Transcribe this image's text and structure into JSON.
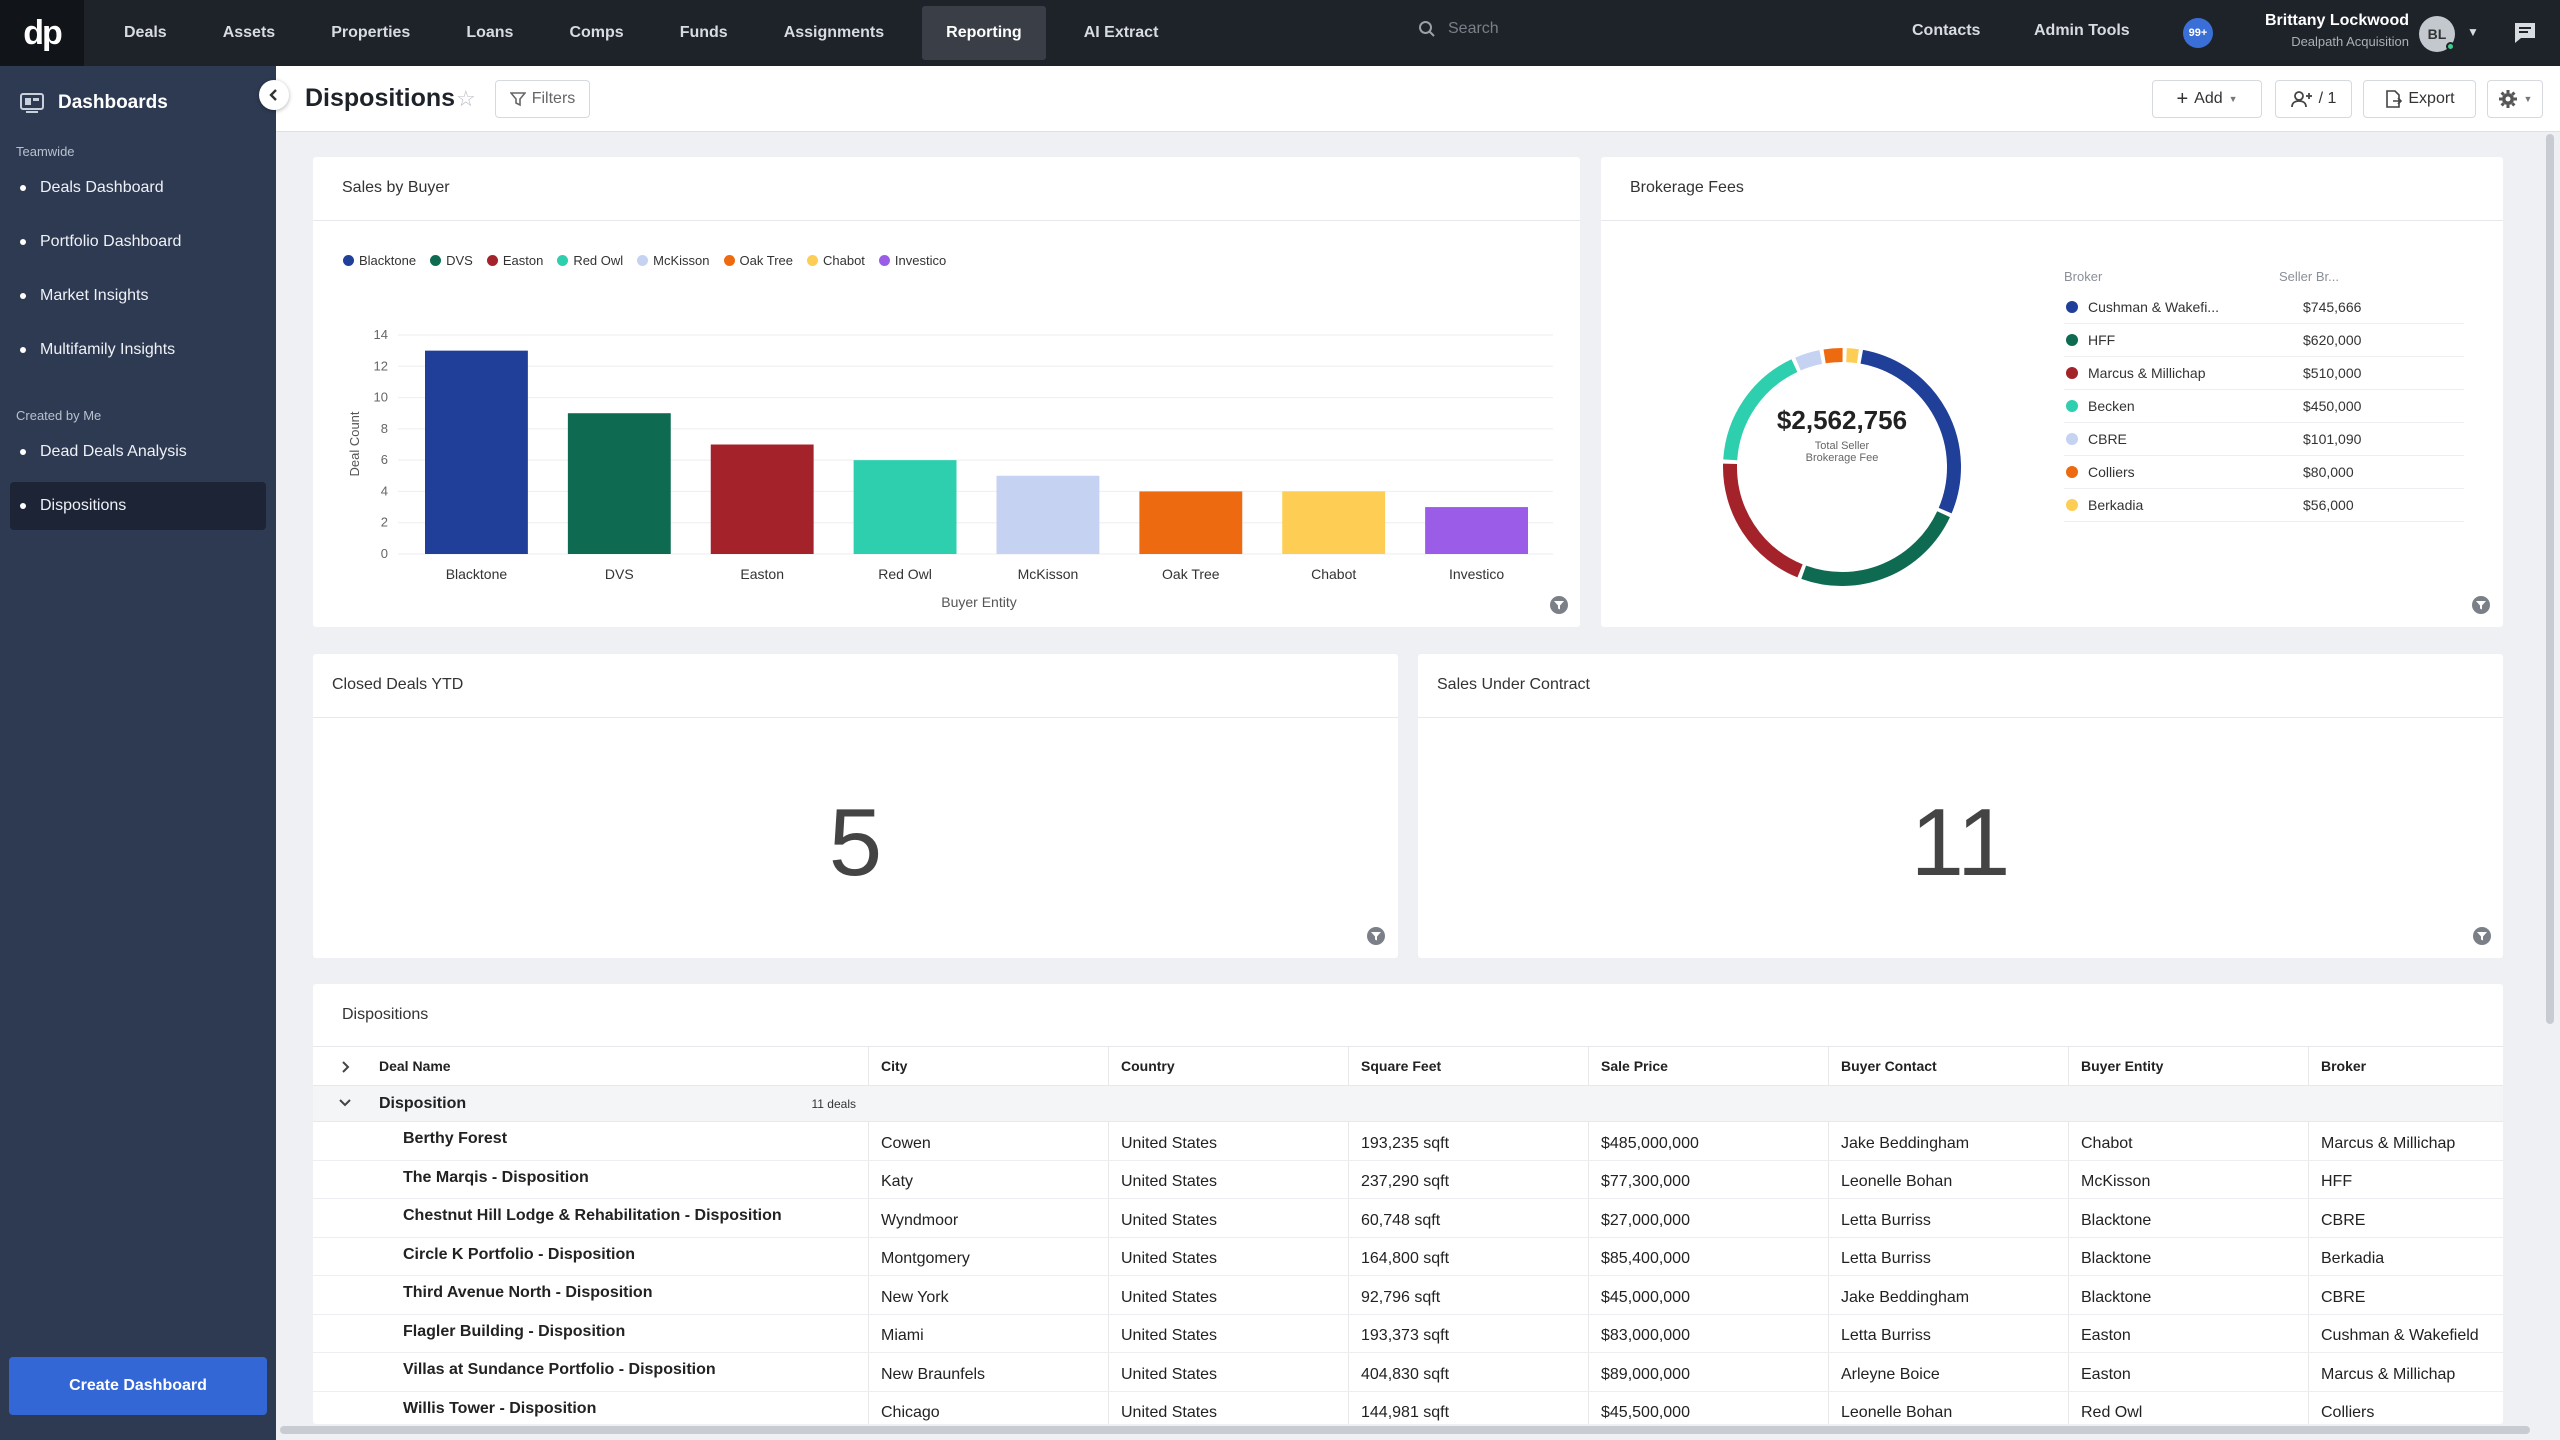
{
  "nav": {
    "logo": "dp",
    "items": [
      "Deals",
      "Assets",
      "Properties",
      "Loans",
      "Comps",
      "Funds",
      "Assignments",
      "Reporting",
      "AI Extract"
    ],
    "active": "Reporting",
    "search_placeholder": "Search",
    "contacts": "Contacts",
    "admin_tools": "Admin Tools",
    "notifications": "99+",
    "user_name": "Brittany Lockwood",
    "user_company": "Dealpath Acquisition",
    "user_initials": "BL"
  },
  "sidebar": {
    "title": "Dashboards",
    "section_teamwide": "Teamwide",
    "teamwide": [
      "Deals Dashboard",
      "Portfolio Dashboard",
      "Market Insights",
      "Multifamily Insights"
    ],
    "section_created": "Created by Me",
    "created": [
      "Dead Deals Analysis",
      "Dispositions"
    ],
    "active": "Dispositions",
    "create_button": "Create Dashboard"
  },
  "header": {
    "title": "Dispositions",
    "filters": "Filters",
    "add": "Add",
    "share_count": "/ 1",
    "export": "Export"
  },
  "sales_by_buyer": {
    "title": "Sales by Buyer",
    "chart_data": {
      "type": "bar",
      "categories": [
        "Blacktone",
        "DVS",
        "Easton",
        "Red Owl",
        "McKisson",
        "Oak Tree",
        "Chabot",
        "Investico"
      ],
      "values": [
        13,
        9,
        7,
        6,
        5,
        4,
        4,
        3
      ],
      "colors": [
        "#1f3f99",
        "#0e6b52",
        "#a4232a",
        "#2ecfae",
        "#c5d2f2",
        "#ee6a10",
        "#fdcd54",
        "#9b5ce8"
      ],
      "xlabel": "Buyer Entity",
      "ylabel": "Deal Count",
      "ylim": [
        0,
        14
      ],
      "yticks": [
        0,
        2,
        4,
        6,
        8,
        10,
        12,
        14
      ],
      "legend": "top-left",
      "grid": true
    }
  },
  "brokerage_fees": {
    "title": "Brokerage Fees",
    "total": "$2,562,756",
    "total_label_1": "Total Seller",
    "total_label_2": "Brokerage Fee",
    "col_broker": "Broker",
    "col_seller": "Seller Br...",
    "chart_data": {
      "type": "pie",
      "categories": [
        "Cushman & Wakefi...",
        "HFF",
        "Marcus & Millichap",
        "Becken",
        "CBRE",
        "Colliers",
        "Berkadia"
      ],
      "display_values": [
        "$745,666",
        "$620,000",
        "$510,000",
        "$450,000",
        "$101,090",
        "$80,000",
        "$56,000"
      ],
      "values": [
        745666,
        620000,
        510000,
        450000,
        101090,
        80000,
        56000
      ],
      "colors": [
        "#1f3f99",
        "#0e6b52",
        "#a4232a",
        "#2ecfae",
        "#c5d2f2",
        "#ee6a10",
        "#fdcd54"
      ]
    }
  },
  "closed_deals": {
    "title": "Closed Deals YTD",
    "value": "5"
  },
  "under_contract": {
    "title": "Sales Under Contract",
    "value": "11"
  },
  "dispositions_table": {
    "title": "Dispositions",
    "columns": [
      "Deal Name",
      "City",
      "Country",
      "Square Feet",
      "Sale Price",
      "Buyer Contact",
      "Buyer Entity",
      "Broker"
    ],
    "group_label": "Disposition",
    "group_count": "11 deals",
    "rows": [
      [
        "Berthy Forest",
        "Cowen",
        "United States",
        "193,235 sqft",
        "$485,000,000",
        "Jake Beddingham",
        "Chabot",
        "Marcus & Millichap"
      ],
      [
        "The Marqis - Disposition",
        "Katy",
        "United States",
        "237,290 sqft",
        "$77,300,000",
        "Leonelle Bohan",
        "McKisson",
        "HFF"
      ],
      [
        "Chestnut Hill Lodge & Rehabilitation - Disposition",
        "Wyndmoor",
        "United States",
        "60,748 sqft",
        "$27,000,000",
        "Letta Burriss",
        "Blacktone",
        "CBRE"
      ],
      [
        "Circle K Portfolio - Disposition",
        "Montgomery",
        "United States",
        "164,800 sqft",
        "$85,400,000",
        "Letta Burriss",
        "Blacktone",
        "Berkadia"
      ],
      [
        "Third Avenue North - Disposition",
        "New York",
        "United States",
        "92,796 sqft",
        "$45,000,000",
        "Jake Beddingham",
        "Blacktone",
        "CBRE"
      ],
      [
        "Flagler Building - Disposition",
        "Miami",
        "United States",
        "193,373 sqft",
        "$83,000,000",
        "Letta Burriss",
        "Easton",
        "Cushman & Wakefield"
      ],
      [
        "Villas at Sundance Portfolio - Disposition",
        "New Braunfels",
        "United States",
        "404,830 sqft",
        "$89,000,000",
        "Arleyne Boice",
        "Easton",
        "Marcus & Millichap"
      ],
      [
        "Willis Tower - Disposition",
        "Chicago",
        "United States",
        "144,981 sqft",
        "$45,500,000",
        "Leonelle Bohan",
        "Red Owl",
        "Colliers"
      ]
    ]
  }
}
